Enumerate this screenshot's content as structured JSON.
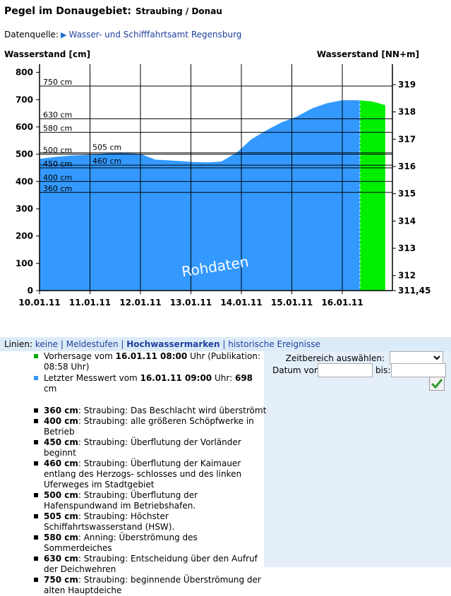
{
  "page": {
    "title": "Pegel im Donaugebiet:",
    "station": "Straubing / Donau",
    "source_label": "Datenquelle:",
    "source_link": "Wasser- und Schifffahrtsamt Regensburg"
  },
  "chart_data": {
    "type": "area",
    "ylabel_left": "Wasserstand [cm]",
    "ylabel_right": "Wasserstand [NN+m]",
    "ylim": [
      0,
      830
    ],
    "yticks_left": [
      0,
      100,
      200,
      300,
      400,
      500,
      600,
      700,
      800
    ],
    "yticks_right": [
      "311,45",
      "312",
      "313",
      "314",
      "315",
      "316",
      "317",
      "318",
      "319"
    ],
    "x_tick_labels": [
      "10.01.11",
      "11.01.11",
      "12.01.11",
      "13.01.11",
      "14.01.11",
      "15.01.11",
      "16.01.11"
    ],
    "watermark": "Rohdaten",
    "grid": "vertical",
    "reference_lines": [
      {
        "value": 750,
        "label": "750 cm"
      },
      {
        "value": 630,
        "label": "630 cm"
      },
      {
        "value": 580,
        "label": "580 cm"
      },
      {
        "value": 505,
        "label": "505 cm"
      },
      {
        "value": 500,
        "label": "500 cm"
      },
      {
        "value": 460,
        "label": "460 cm"
      },
      {
        "value": 450,
        "label": "450 cm"
      },
      {
        "value": 400,
        "label": "400 cm"
      },
      {
        "value": 360,
        "label": "360 cm"
      }
    ],
    "series": [
      {
        "color": "#3399ff",
        "x_days": [
          0,
          0.3,
          0.6,
          1.0,
          1.3,
          1.6,
          2.0,
          2.3,
          2.6,
          3.0,
          3.3,
          3.6,
          3.9,
          4.2,
          4.5,
          4.8,
          5.1,
          5.4,
          5.7,
          6.0,
          6.35
        ],
        "values": [
          483,
          490,
          495,
          498,
          503,
          506,
          501,
          480,
          477,
          472,
          470,
          473,
          505,
          555,
          588,
          617,
          638,
          668,
          687,
          698,
          698
        ]
      },
      {
        "color": "#00ee00",
        "x_days": [
          6.35,
          6.6,
          6.85
        ],
        "values": [
          698,
          693,
          680
        ]
      }
    ]
  },
  "lines_bar": {
    "prefix": "Linien:",
    "links": [
      "keine",
      "Meldestufen",
      "Hochwassermarken",
      "historische Ereignisse"
    ]
  },
  "legend": {
    "forecast": {
      "pre": "Vorhersage vom",
      "date": "16.01.11 08:00",
      "post": "Uhr (Publikation: 08:58 Uhr)",
      "color": "#00aa00"
    },
    "measure": {
      "pre": "Letzter Messwert vom",
      "date": "16.01.11 09:00",
      "mid": "Uhr:",
      "value": "698",
      "unit": "cm",
      "color": "#3399ff"
    }
  },
  "panel": {
    "range_label": "Zeitbereich auswählen:",
    "range_value": "",
    "date_from_label": "Datum von:",
    "date_to_label": "bis:",
    "ok_icon": "checkmark-icon"
  },
  "marks": [
    {
      "value": "360 cm",
      "text": ": Straubing: Das Beschlacht wird überströmt"
    },
    {
      "value": "400 cm",
      "text": ": Straubing: alle größeren Schöpfwerke in Betrieb"
    },
    {
      "value": "450 cm",
      "text": ": Straubing: Überflutung der Vorländer beginnt"
    },
    {
      "value": "460 cm",
      "text": ": Straubing: Überflutung der Kaimauer entlang des Herzogs- schlosses und des linken Uferweges im Stadtgebiet"
    },
    {
      "value": "500 cm",
      "text": ": Straubing: Überflutung der Hafenspundwand im Betriebshafen."
    },
    {
      "value": "505 cm",
      "text": ": Straubing: Höchster Schiffahrtswasserstand (HSW)."
    },
    {
      "value": "580 cm",
      "text": ": Anning: Überströmung des Sommerdeiches"
    },
    {
      "value": "630 cm",
      "text": ": Straubing: Entscheidung über den Aufruf der Deichwehren"
    },
    {
      "value": "750 cm",
      "text": ": Straubing: beginnende Überströmung der alten Hauptdeiche"
    }
  ]
}
